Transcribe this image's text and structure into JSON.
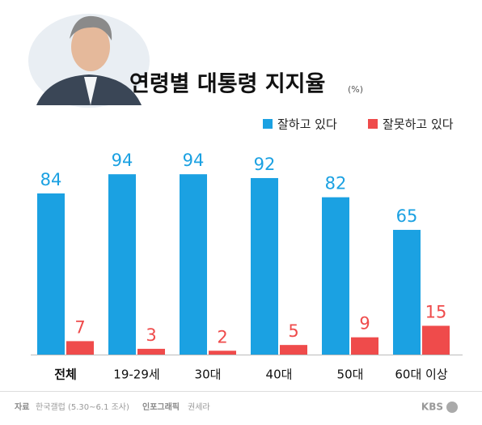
{
  "chart_data": {
    "type": "bar",
    "title": "연령별 대통령 지지율",
    "subtitle": "(%)",
    "categories": [
      "전체",
      "19-29세",
      "30대",
      "40대",
      "50대",
      "60대 이상"
    ],
    "series": [
      {
        "name": "잘하고 있다",
        "color": "#1ba1e2",
        "values": [
          84,
          94,
          94,
          92,
          82,
          65
        ]
      },
      {
        "name": "잘못하고 있다",
        "color": "#ef4b4b",
        "values": [
          7,
          3,
          2,
          5,
          9,
          15
        ]
      }
    ],
    "legend": "top-right",
    "source_label": "자료",
    "source": "한국갤럽 (5.30~6.1 조사)",
    "credit_label": "인포그래픽",
    "credit": "권세라",
    "logo": "KBS"
  }
}
